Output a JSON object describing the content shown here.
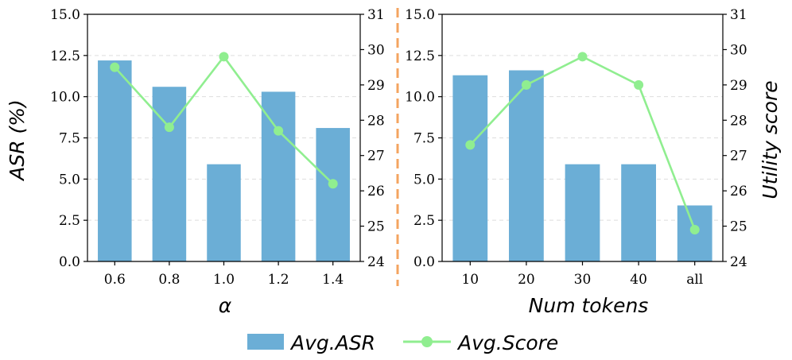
{
  "chart_data": [
    {
      "type": "bar",
      "panel": "left",
      "categories": [
        "0.6",
        "0.8",
        "1.0",
        "1.2",
        "1.4"
      ],
      "series": [
        {
          "name": "Avg.ASR",
          "axis": "left",
          "kind": "bar",
          "values": [
            12.2,
            10.6,
            5.9,
            10.3,
            8.1
          ]
        },
        {
          "name": "Avg.Score",
          "axis": "right",
          "kind": "line",
          "values": [
            29.5,
            27.8,
            29.8,
            27.7,
            26.2
          ]
        }
      ],
      "xlabel": "α",
      "ylabel": "ASR (%)",
      "ylim": [
        0,
        15
      ],
      "y_ticks": [
        "0.0",
        "2.5",
        "5.0",
        "7.5",
        "10.0",
        "12.5",
        "15.0"
      ],
      "y2lim": [
        24,
        31
      ],
      "y2_ticks": [
        "24",
        "25",
        "26",
        "27",
        "28",
        "29",
        "30",
        "31"
      ],
      "grid": "horizontal dashed"
    },
    {
      "type": "bar",
      "panel": "right",
      "categories": [
        "10",
        "20",
        "30",
        "40",
        "all"
      ],
      "series": [
        {
          "name": "Avg.ASR",
          "axis": "left",
          "kind": "bar",
          "values": [
            11.3,
            11.6,
            5.9,
            5.9,
            3.4
          ]
        },
        {
          "name": "Avg.Score",
          "axis": "right",
          "kind": "line",
          "values": [
            27.3,
            29.0,
            29.8,
            29.0,
            24.9
          ]
        }
      ],
      "xlabel": "Num tokens",
      "y2label": "Utility score",
      "ylim": [
        0,
        15
      ],
      "y_ticks": [
        "0.0",
        "2.5",
        "5.0",
        "7.5",
        "10.0",
        "12.5",
        "15.0"
      ],
      "y2lim": [
        24,
        31
      ],
      "y2_ticks": [
        "24",
        "25",
        "26",
        "27",
        "28",
        "29",
        "30",
        "31"
      ],
      "grid": "horizontal dashed"
    }
  ],
  "legend": {
    "position": "bottom-center",
    "items": [
      {
        "label": "Avg.ASR",
        "kind": "bar"
      },
      {
        "label": "Avg.Score",
        "kind": "line"
      }
    ]
  },
  "colors": {
    "bar": "#6baed6",
    "line": "#90ee90",
    "grid": "#dddddd",
    "divider": "#f4a460"
  }
}
